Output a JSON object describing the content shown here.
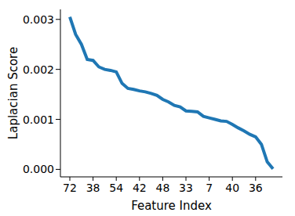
{
  "chart_data": {
    "type": "line",
    "x_label": "Feature Index",
    "y_label": "Laplacian Score",
    "categories": [
      "72",
      null,
      null,
      null,
      "38",
      null,
      null,
      null,
      "54",
      null,
      null,
      null,
      "42",
      null,
      null,
      null,
      "48",
      null,
      null,
      null,
      "33",
      null,
      null,
      null,
      "7",
      null,
      null,
      null,
      "40",
      null,
      null,
      null,
      "36",
      null,
      null,
      null
    ],
    "values": [
      0.00305,
      0.0027,
      0.0025,
      0.0022,
      0.00218,
      0.00205,
      0.002,
      0.00198,
      0.00195,
      0.00172,
      0.00162,
      0.0016,
      0.00157,
      0.00155,
      0.00152,
      0.00148,
      0.0014,
      0.00135,
      0.00128,
      0.00125,
      0.00117,
      0.00116,
      0.00115,
      0.00106,
      0.00103,
      0.001,
      0.00097,
      0.00096,
      0.0009,
      0.00083,
      0.00077,
      0.0007,
      0.00065,
      0.0005,
      0.00015,
      1e-05
    ],
    "color": "#1f77b4",
    "ylim": [
      -0.00015,
      0.0032
    ],
    "yticks": [
      {
        "value": 0,
        "label": "0.000"
      },
      {
        "value": 0.001,
        "label": "0.001"
      },
      {
        "value": 0.002,
        "label": "0.002"
      },
      {
        "value": 0.003,
        "label": "0.003"
      }
    ],
    "grid": false
  }
}
